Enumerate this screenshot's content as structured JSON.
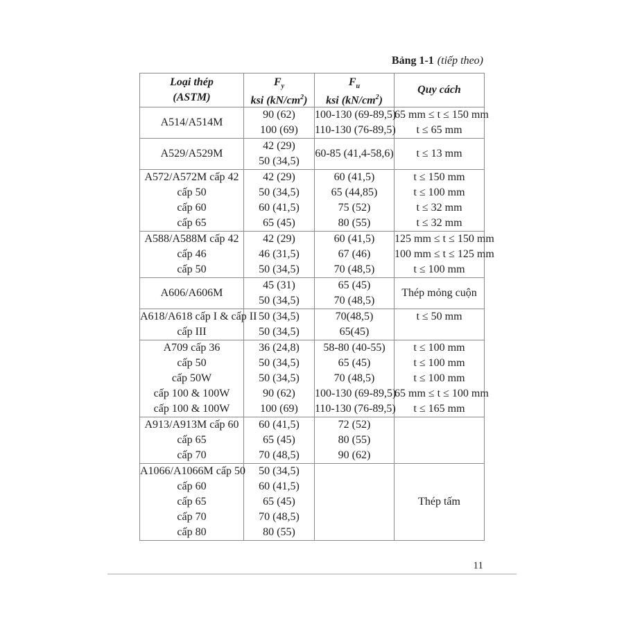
{
  "caption": {
    "number": "Bảng 1-1",
    "continued": "(tiếp theo)"
  },
  "colors": {
    "table_border": "#8a8a8a",
    "footer_rule": "#d2d2d2",
    "text": "#1c1c1c"
  },
  "table": {
    "header": {
      "steel": [
        "Loại thép",
        "(ASTM)"
      ],
      "fy": {
        "symbol": "F",
        "subscript": "y",
        "unit_pre": "ksi (kN/cm",
        "unit_sup": "2",
        "unit_post": ")"
      },
      "fu": {
        "symbol": "F",
        "subscript": "u",
        "unit_pre": "ksi (kN/cm",
        "unit_sup": "2",
        "unit_post": ")"
      },
      "spec": "Quy cách"
    },
    "rows": [
      {
        "steel": [
          "A514/A514M"
        ],
        "fy": [
          "90 (62)",
          "100 (69)"
        ],
        "fu": [
          "100-130 (69-89,5)",
          "110-130 (76-89,5)"
        ],
        "spec": [
          "65 mm ≤ t ≤ 150 mm",
          "t ≤ 65 mm"
        ]
      },
      {
        "steel": [
          "A529/A529M"
        ],
        "fy": [
          "42 (29)",
          "50 (34,5)"
        ],
        "fu": [
          "60-85 (41,4-58,6)"
        ],
        "spec": [
          "t ≤ 13 mm"
        ]
      },
      {
        "steel": [
          "A572/A572M cấp 42",
          "cấp 50",
          "cấp 60",
          "cấp 65"
        ],
        "fy": [
          "42 (29)",
          "50 (34,5)",
          "60 (41,5)",
          "65 (45)"
        ],
        "fu": [
          "60 (41,5)",
          "65 (44,85)",
          "75 (52)",
          "80 (55)"
        ],
        "spec": [
          "t ≤ 150 mm",
          "t ≤ 100 mm",
          "t ≤ 32 mm",
          "t ≤ 32 mm"
        ]
      },
      {
        "steel": [
          "A588/A588M cấp 42",
          "cấp 46",
          "cấp 50"
        ],
        "fy": [
          "42 (29)",
          "46 (31,5)",
          "50 (34,5)"
        ],
        "fu": [
          "60 (41,5)",
          "67 (46)",
          "70 (48,5)"
        ],
        "spec": [
          "125 mm ≤ t ≤ 150 mm",
          "100 mm ≤ t ≤ 125 mm",
          "t ≤ 100 mm"
        ]
      },
      {
        "steel": [
          "A606/A606M"
        ],
        "fy": [
          "45 (31)",
          "50 (34,5)"
        ],
        "fu": [
          "65 (45)",
          "70 (48,5)"
        ],
        "spec": [
          "Thép mỏng cuộn"
        ]
      },
      {
        "steel": [
          "A618/A618 cấp I & cấp II",
          "cấp III"
        ],
        "fy": [
          "50 (34,5)",
          "50 (34,5)"
        ],
        "fu": [
          "70(48,5)",
          "65(45)"
        ],
        "spec": [
          "t ≤ 50 mm",
          ""
        ]
      },
      {
        "steel": [
          "A709 cấp 36",
          "cấp 50",
          "cấp 50W",
          "cấp 100 & 100W",
          "cấp 100 & 100W"
        ],
        "fy": [
          "36 (24,8)",
          "50 (34,5)",
          "50 (34,5)",
          "90 (62)",
          "100 (69)"
        ],
        "fu": [
          "58-80 (40-55)",
          "65 (45)",
          "70 (48,5)",
          "100-130 (69-89,5)",
          "110-130 (76-89,5)"
        ],
        "spec": [
          "t ≤ 100 mm",
          "t ≤ 100 mm",
          "t ≤ 100 mm",
          "65 mm ≤ t ≤ 100 mm",
          "t ≤ 165 mm"
        ]
      },
      {
        "steel": [
          "A913/A913M cấp 60",
          "cấp 65",
          "cấp 70"
        ],
        "fy": [
          "60 (41,5)",
          "65 (45)",
          "70 (48,5)"
        ],
        "fu": [
          "72 (52)",
          "80 (55)",
          "90 (62)"
        ],
        "spec": []
      },
      {
        "steel": [
          "A1066/A1066M cấp 50",
          "cấp 60",
          "cấp 65",
          "cấp 70",
          "cấp 80"
        ],
        "fy": [
          "50 (34,5)",
          "60 (41,5)",
          "65 (45)",
          "70 (48,5)",
          "80 (55)"
        ],
        "fu": [],
        "spec": [
          "Thép tấm"
        ]
      }
    ]
  },
  "footer": {
    "page_number": "11"
  }
}
